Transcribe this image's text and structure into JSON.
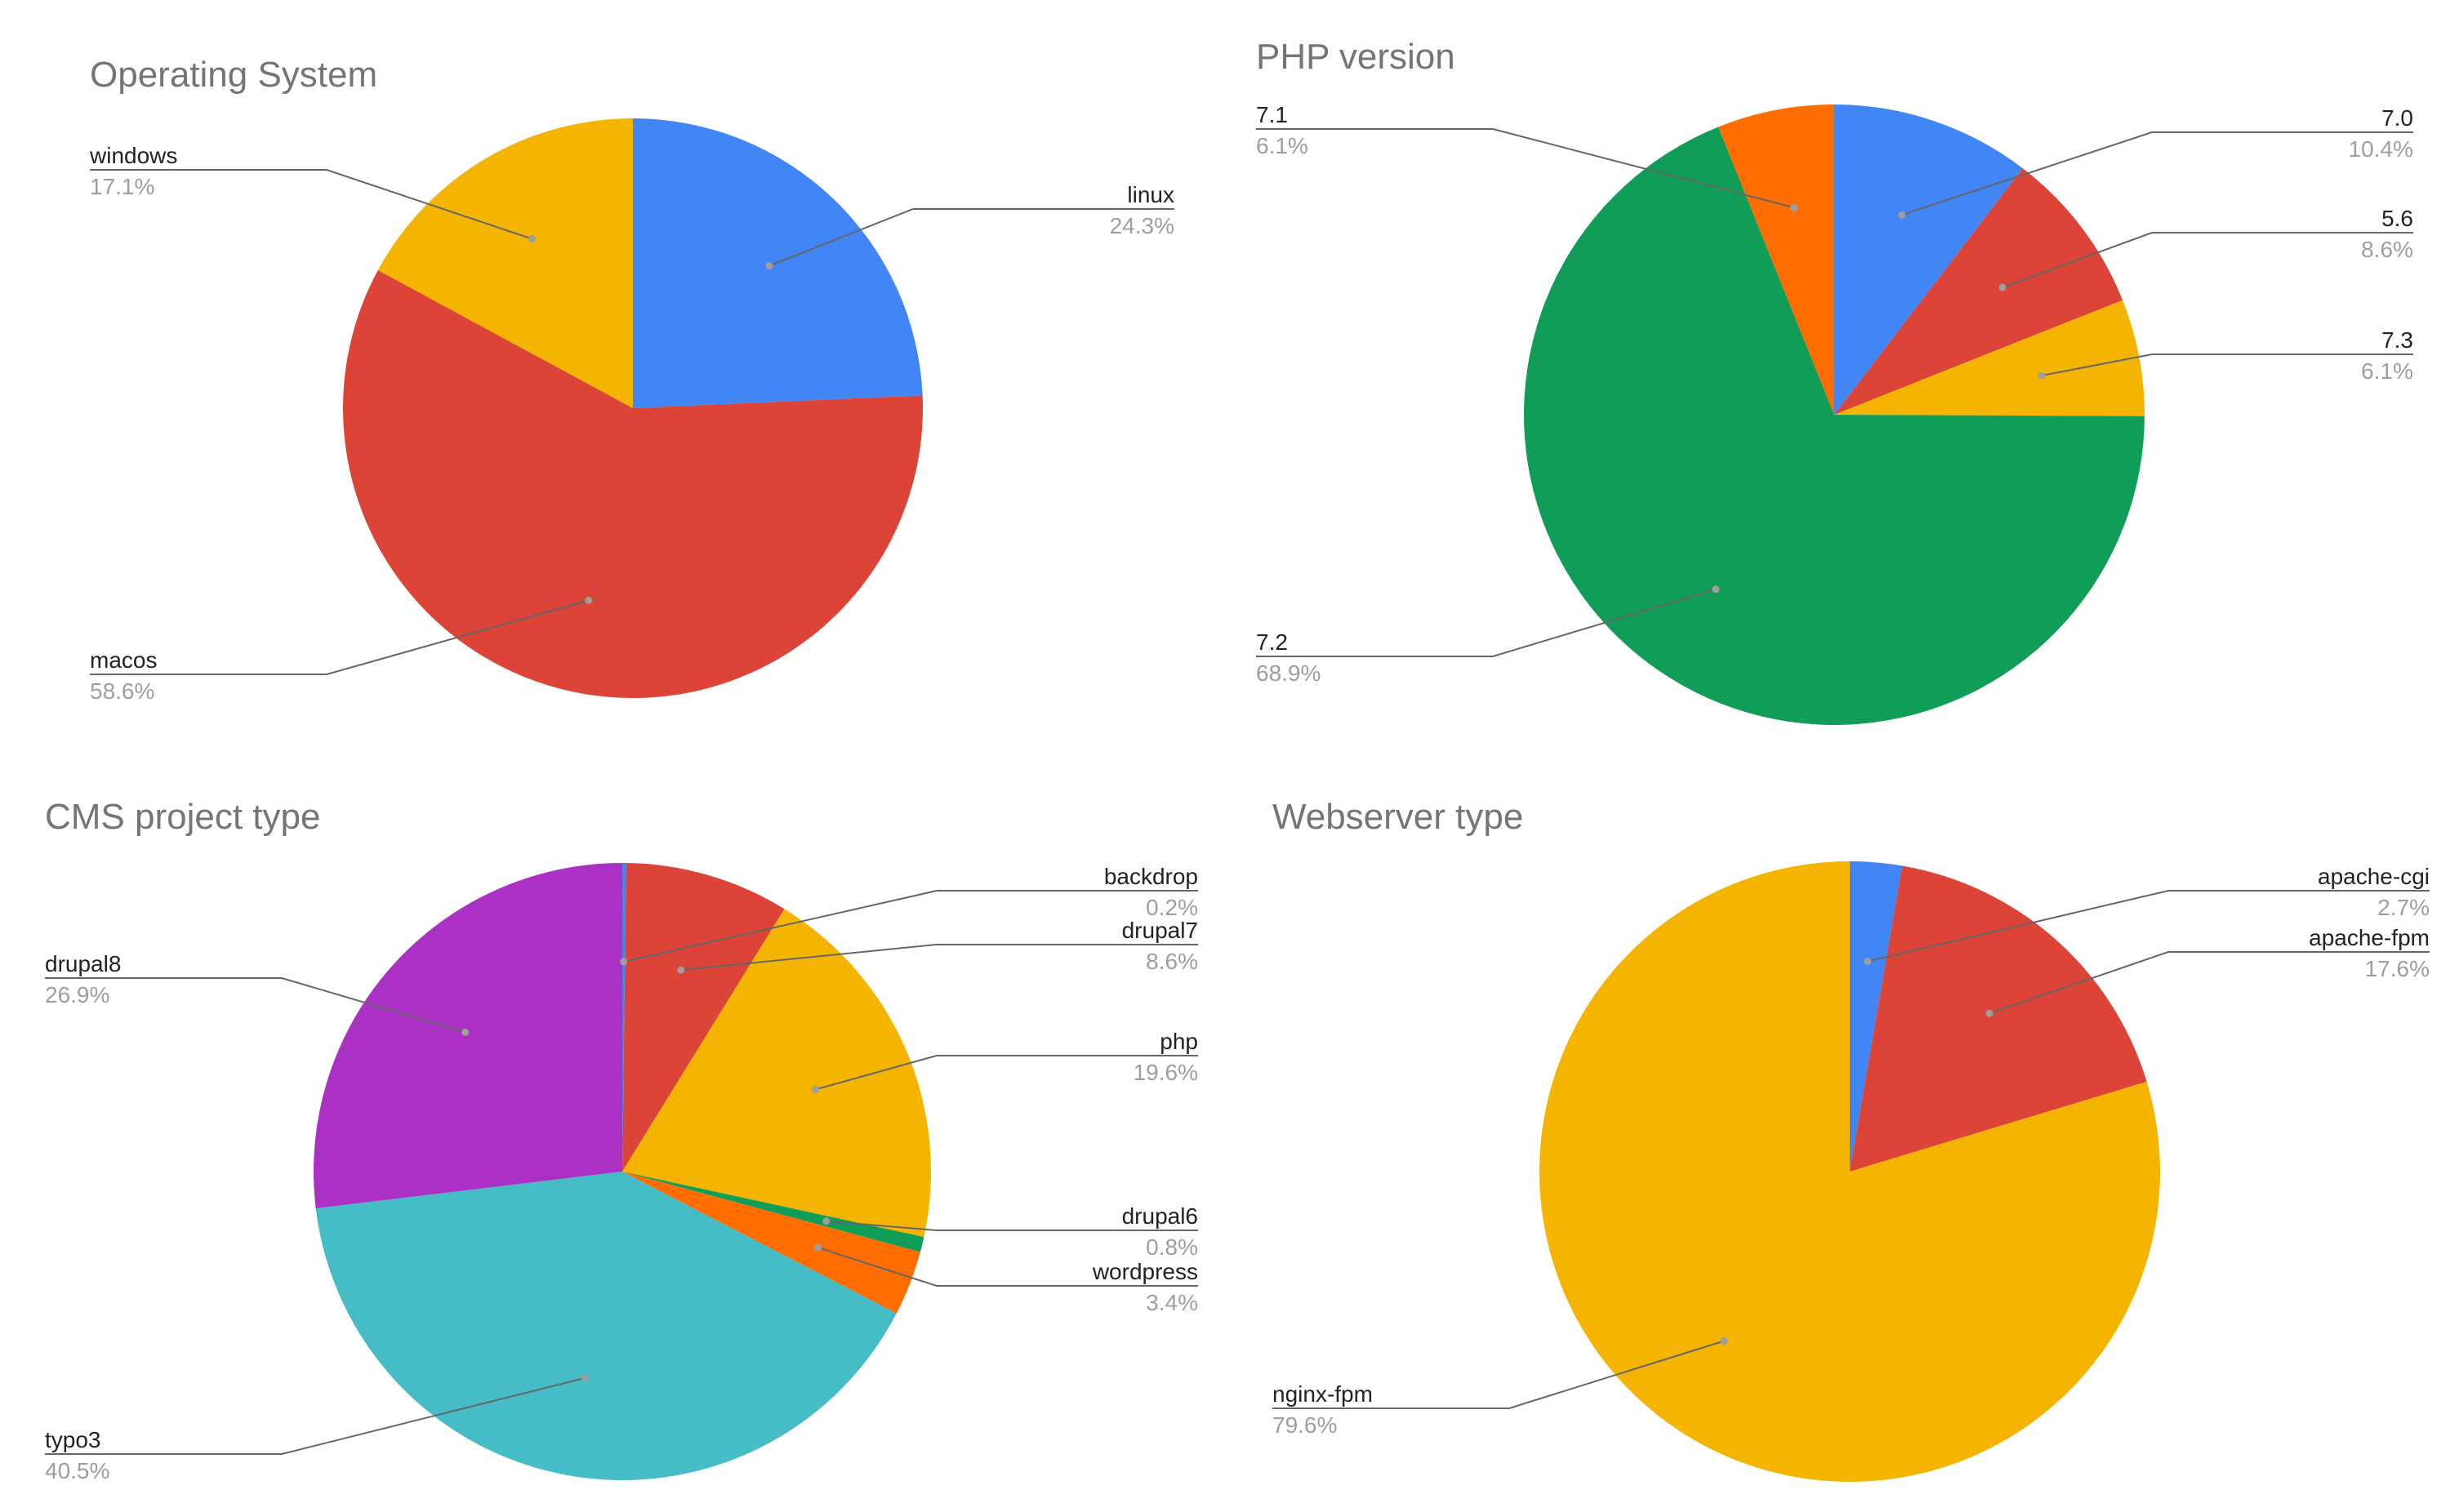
{
  "colors": {
    "blue": "#4285F4",
    "red": "#DB4437",
    "yellow": "#F4B400",
    "green": "#0F9D58",
    "orange": "#FF6D00",
    "purple": "#AB30C4",
    "teal": "#46BDC6"
  },
  "chart_data": [
    {
      "type": "pie",
      "title": "Operating System",
      "slices": [
        {
          "label": "linux",
          "value": 24.3,
          "pct": "24.3%",
          "color": "#4285F4"
        },
        {
          "label": "macos",
          "value": 58.6,
          "pct": "58.6%",
          "color": "#DB4437"
        },
        {
          "label": "windows",
          "value": 17.1,
          "pct": "17.1%",
          "color": "#F4B400"
        }
      ]
    },
    {
      "type": "pie",
      "title": "PHP version",
      "slices": [
        {
          "label": "7.0",
          "value": 10.4,
          "pct": "10.4%",
          "color": "#4285F4"
        },
        {
          "label": "5.6",
          "value": 8.6,
          "pct": "8.6%",
          "color": "#DB4437"
        },
        {
          "label": "7.3",
          "value": 6.1,
          "pct": "6.1%",
          "color": "#F4B400"
        },
        {
          "label": "7.2",
          "value": 68.9,
          "pct": "68.9%",
          "color": "#0F9D58"
        },
        {
          "label": "7.1",
          "value": 6.1,
          "pct": "6.1%",
          "color": "#FF6D00"
        }
      ]
    },
    {
      "type": "pie",
      "title": "CMS project type",
      "slices": [
        {
          "label": "backdrop",
          "value": 0.2,
          "pct": "0.2%",
          "color": "#4285F4"
        },
        {
          "label": "drupal7",
          "value": 8.6,
          "pct": "8.6%",
          "color": "#DB4437"
        },
        {
          "label": "php",
          "value": 19.6,
          "pct": "19.6%",
          "color": "#F4B400"
        },
        {
          "label": "drupal6",
          "value": 0.8,
          "pct": "0.8%",
          "color": "#0F9D58"
        },
        {
          "label": "wordpress",
          "value": 3.4,
          "pct": "3.4%",
          "color": "#FF6D00"
        },
        {
          "label": "typo3",
          "value": 40.5,
          "pct": "40.5%",
          "color": "#46BDC6"
        },
        {
          "label": "drupal8",
          "value": 26.9,
          "pct": "26.9%",
          "color": "#AB30C4"
        }
      ]
    },
    {
      "type": "pie",
      "title": "Webserver type",
      "slices": [
        {
          "label": "apache-cgi",
          "value": 2.7,
          "pct": "2.7%",
          "color": "#4285F4"
        },
        {
          "label": "apache-fpm",
          "value": 17.6,
          "pct": "17.6%",
          "color": "#DB4437"
        },
        {
          "label": "nginx-fpm",
          "value": 79.6,
          "pct": "79.6%",
          "color": "#F4B400"
        }
      ]
    }
  ]
}
